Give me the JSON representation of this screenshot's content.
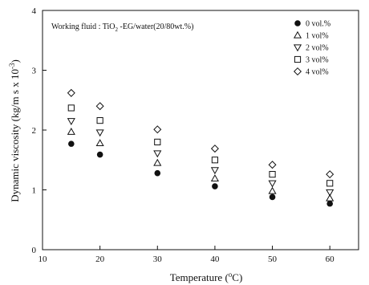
{
  "chart_data": {
    "type": "scatter",
    "annotation": {
      "prefix": "Working fluid : TiO",
      "sub": "2",
      "suffix": " -EG/water(20/80wt.%)"
    },
    "xlabel": {
      "prefix": "Temperature (",
      "sup": "o",
      "suffix": "C)"
    },
    "ylabel": {
      "prefix": "Dynamic viscosity (kg/m s x 10",
      "sup": "-3",
      "suffix": ")"
    },
    "xlim": [
      10,
      65
    ],
    "ylim": [
      0,
      4
    ],
    "xticks": [
      10,
      20,
      30,
      40,
      50,
      60
    ],
    "yticks": [
      0,
      1,
      2,
      3,
      4
    ],
    "x": [
      15,
      20,
      30,
      40,
      50,
      60
    ],
    "series": [
      {
        "name": "0 vol.%",
        "marker": "filled-circle",
        "values": [
          1.77,
          1.59,
          1.28,
          1.06,
          0.88,
          0.77
        ]
      },
      {
        "name": "1 vol%",
        "marker": "triangle-up",
        "values": [
          1.97,
          1.78,
          1.45,
          1.19,
          0.98,
          0.86
        ]
      },
      {
        "name": "2 vol%",
        "marker": "triangle-down",
        "values": [
          2.15,
          1.96,
          1.61,
          1.33,
          1.11,
          0.96
        ]
      },
      {
        "name": "3 vol%",
        "marker": "square",
        "values": [
          2.37,
          2.16,
          1.8,
          1.5,
          1.26,
          1.11
        ]
      },
      {
        "name": "4 vol%",
        "marker": "diamond",
        "values": [
          2.62,
          2.4,
          2.01,
          1.69,
          1.42,
          1.26
        ]
      }
    ],
    "legend_position": "top-right",
    "grid": false
  }
}
